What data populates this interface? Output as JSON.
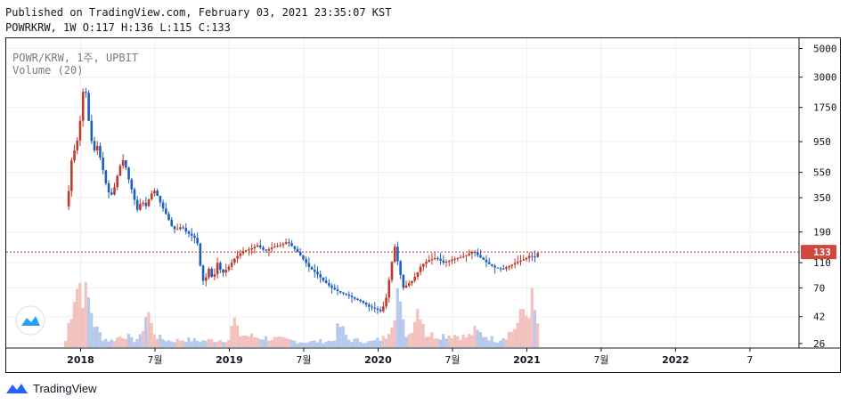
{
  "header": {
    "published_line": "Published on TradingView.com, February 03, 2021 23:35:07 KST",
    "ohlc_line": "POWRKRW, 1W O:117 H:136 L:115 C:133"
  },
  "footer": {
    "brand": "TradingView"
  },
  "icons": {
    "brand_logo": "tradingview-logo-icon",
    "watermark": "tradingview-badge-icon"
  },
  "chart_data": {
    "type": "candlestick",
    "symbol_legend": "POWR/KRW, 1주, UPBIT",
    "volume_legend": "Volume (20)",
    "price_scale": "log",
    "price_ticks": [
      5000,
      3000,
      1750,
      950,
      550,
      350,
      190,
      110,
      70,
      42,
      26
    ],
    "last_price": 133,
    "time_ticks": [
      {
        "label": "2018",
        "t": 2018.0,
        "bold": true
      },
      {
        "label": "7월",
        "t": 2018.5,
        "bold": false
      },
      {
        "label": "2019",
        "t": 2019.0,
        "bold": true
      },
      {
        "label": "7월",
        "t": 2019.5,
        "bold": false
      },
      {
        "label": "2020",
        "t": 2020.0,
        "bold": true
      },
      {
        "label": "7월",
        "t": 2020.5,
        "bold": false
      },
      {
        "label": "2021",
        "t": 2021.0,
        "bold": true
      },
      {
        "label": "7월",
        "t": 2021.5,
        "bold": false
      },
      {
        "label": "2022",
        "t": 2022.0,
        "bold": true
      },
      {
        "label": "7",
        "t": 2022.5,
        "bold": false
      }
    ],
    "price_path": [
      [
        2017.92,
        300
      ],
      [
        2017.95,
        700
      ],
      [
        2017.98,
        900
      ],
      [
        2018.0,
        1100
      ],
      [
        2018.02,
        2200
      ],
      [
        2018.04,
        2600
      ],
      [
        2018.06,
        1500
      ],
      [
        2018.08,
        1000
      ],
      [
        2018.1,
        800
      ],
      [
        2018.12,
        900
      ],
      [
        2018.15,
        650
      ],
      [
        2018.18,
        450
      ],
      [
        2018.21,
        350
      ],
      [
        2018.24,
        430
      ],
      [
        2018.27,
        600
      ],
      [
        2018.3,
        700
      ],
      [
        2018.33,
        500
      ],
      [
        2018.36,
        380
      ],
      [
        2018.39,
        280
      ],
      [
        2018.42,
        330
      ],
      [
        2018.45,
        300
      ],
      [
        2018.48,
        370
      ],
      [
        2018.51,
        400
      ],
      [
        2018.54,
        330
      ],
      [
        2018.57,
        280
      ],
      [
        2018.6,
        240
      ],
      [
        2018.63,
        200
      ],
      [
        2018.66,
        200
      ],
      [
        2018.69,
        210
      ],
      [
        2018.72,
        190
      ],
      [
        2018.75,
        180
      ],
      [
        2018.78,
        170
      ],
      [
        2018.8,
        150
      ],
      [
        2018.82,
        90
      ],
      [
        2018.84,
        75
      ],
      [
        2018.87,
        100
      ],
      [
        2018.9,
        80
      ],
      [
        2018.93,
        110
      ],
      [
        2018.96,
        90
      ],
      [
        2019.0,
        100
      ],
      [
        2019.05,
        120
      ],
      [
        2019.1,
        135
      ],
      [
        2019.15,
        140
      ],
      [
        2019.2,
        150
      ],
      [
        2019.25,
        135
      ],
      [
        2019.3,
        145
      ],
      [
        2019.35,
        150
      ],
      [
        2019.4,
        160
      ],
      [
        2019.45,
        140
      ],
      [
        2019.5,
        120
      ],
      [
        2019.55,
        100
      ],
      [
        2019.6,
        90
      ],
      [
        2019.65,
        78
      ],
      [
        2019.7,
        70
      ],
      [
        2019.75,
        65
      ],
      [
        2019.8,
        62
      ],
      [
        2019.85,
        58
      ],
      [
        2019.9,
        55
      ],
      [
        2019.95,
        50
      ],
      [
        2020.0,
        48
      ],
      [
        2020.03,
        46
      ],
      [
        2020.06,
        55
      ],
      [
        2020.09,
        90
      ],
      [
        2020.12,
        150
      ],
      [
        2020.15,
        100
      ],
      [
        2020.18,
        70
      ],
      [
        2020.21,
        75
      ],
      [
        2020.24,
        80
      ],
      [
        2020.27,
        90
      ],
      [
        2020.3,
        105
      ],
      [
        2020.35,
        115
      ],
      [
        2020.4,
        120
      ],
      [
        2020.45,
        110
      ],
      [
        2020.5,
        115
      ],
      [
        2020.55,
        120
      ],
      [
        2020.6,
        125
      ],
      [
        2020.65,
        135
      ],
      [
        2020.7,
        120
      ],
      [
        2020.75,
        108
      ],
      [
        2020.8,
        100
      ],
      [
        2020.85,
        98
      ],
      [
        2020.9,
        105
      ],
      [
        2020.95,
        112
      ],
      [
        2021.0,
        118
      ],
      [
        2021.03,
        125
      ],
      [
        2021.06,
        120
      ],
      [
        2021.09,
        133
      ]
    ],
    "volume_envelope": [
      [
        2017.9,
        0.1
      ],
      [
        2017.93,
        0.5
      ],
      [
        2017.96,
        0.9
      ],
      [
        2018.0,
        1.0
      ],
      [
        2018.03,
        0.8
      ],
      [
        2018.06,
        0.7
      ],
      [
        2018.1,
        0.3
      ],
      [
        2018.15,
        0.15
      ],
      [
        2018.2,
        0.1
      ],
      [
        2018.25,
        0.15
      ],
      [
        2018.3,
        0.2
      ],
      [
        2018.35,
        0.1
      ],
      [
        2018.4,
        0.15
      ],
      [
        2018.45,
        0.6
      ],
      [
        2018.48,
        0.3
      ],
      [
        2018.52,
        0.15
      ],
      [
        2018.6,
        0.1
      ],
      [
        2018.7,
        0.12
      ],
      [
        2018.8,
        0.1
      ],
      [
        2019.0,
        0.12
      ],
      [
        2019.03,
        0.45
      ],
      [
        2019.06,
        0.2
      ],
      [
        2019.2,
        0.15
      ],
      [
        2019.35,
        0.12
      ],
      [
        2019.5,
        0.08
      ],
      [
        2019.7,
        0.1
      ],
      [
        2019.74,
        0.35
      ],
      [
        2019.8,
        0.12
      ],
      [
        2019.95,
        0.08
      ],
      [
        2020.05,
        0.15
      ],
      [
        2020.1,
        0.5
      ],
      [
        2020.13,
        0.9
      ],
      [
        2020.16,
        0.4
      ],
      [
        2020.2,
        0.15
      ],
      [
        2020.28,
        0.7
      ],
      [
        2020.32,
        0.2
      ],
      [
        2020.4,
        0.18
      ],
      [
        2020.5,
        0.2
      ],
      [
        2020.6,
        0.15
      ],
      [
        2020.65,
        0.25
      ],
      [
        2020.7,
        0.2
      ],
      [
        2020.8,
        0.1
      ],
      [
        2020.9,
        0.25
      ],
      [
        2020.95,
        0.4
      ],
      [
        2020.98,
        0.6
      ],
      [
        2021.0,
        0.5
      ],
      [
        2021.03,
        0.75
      ],
      [
        2021.06,
        0.45
      ],
      [
        2021.1,
        0.2
      ]
    ]
  }
}
